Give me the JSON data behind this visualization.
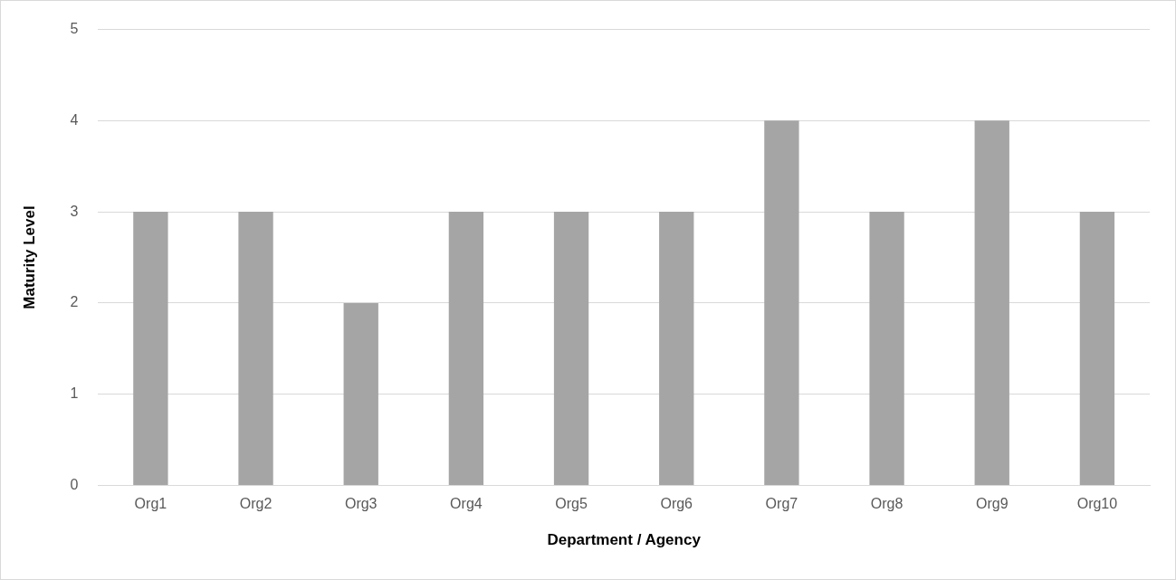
{
  "chart_data": {
    "type": "bar",
    "xlabel": "Department / Agency",
    "ylabel": "Maturity Level",
    "categories": [
      "Org1",
      "Org2",
      "Org3",
      "Org4",
      "Org5",
      "Org6",
      "Org7",
      "Org8",
      "Org9",
      "Org10"
    ],
    "values": [
      3,
      3,
      2,
      3,
      3,
      3,
      4,
      3,
      4,
      3
    ],
    "color": "#a5a5a5",
    "ylim": [
      0,
      5
    ],
    "yticks": [
      0,
      1,
      2,
      3,
      4,
      5
    ],
    "grid": "y",
    "legend": false
  }
}
